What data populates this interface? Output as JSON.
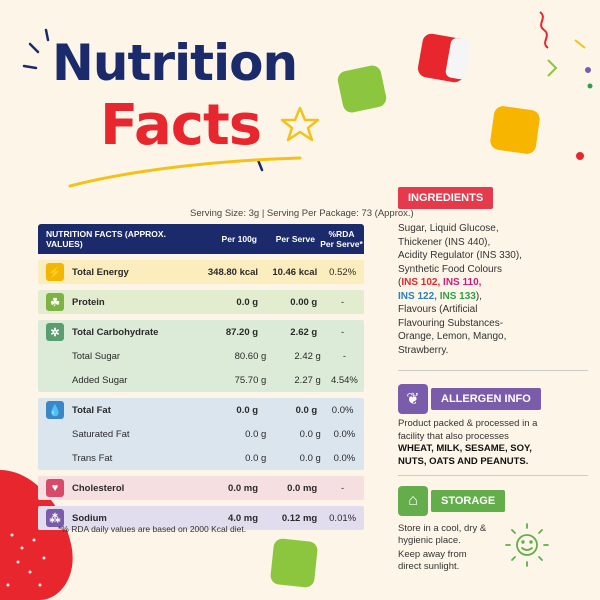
{
  "title": {
    "line1": "Nutrition",
    "line2": "Facts"
  },
  "serving": "Serving Size: 3g | Serving Per Package: 73 (Approx.)",
  "table": {
    "headers": {
      "col1": "NUTRITION FACTS (APPROX. VALUES)",
      "col2": "Per 100g",
      "col3": "Per Serve",
      "col4a": "%RDA",
      "col4b": "Per Serve*"
    },
    "energy": {
      "label": "Total Energy",
      "per100": "348.80 kcal",
      "serve": "10.46 kcal",
      "rda": "0.52%"
    },
    "protein": {
      "label": "Protein",
      "per100": "0.0 g",
      "serve": "0.00 g",
      "rda": "-"
    },
    "carb": {
      "label": "Total Carbohydrate",
      "per100": "87.20 g",
      "serve": "2.62 g",
      "rda": "-"
    },
    "sugar": {
      "label": "Total Sugar",
      "per100": "80.60 g",
      "serve": "2.42 g",
      "rda": "-"
    },
    "added_sugar": {
      "label": "Added Sugar",
      "per100": "75.70 g",
      "serve": "2.27 g",
      "rda": "4.54%"
    },
    "fat": {
      "label": "Total Fat",
      "per100": "0.0 g",
      "serve": "0.0 g",
      "rda": "0.0%"
    },
    "sat_fat": {
      "label": "Saturated Fat",
      "per100": "0.0 g",
      "serve": "0.0 g",
      "rda": "0.0%"
    },
    "trans_fat": {
      "label": "Trans Fat",
      "per100": "0.0 g",
      "serve": "0.0 g",
      "rda": "0.0%"
    },
    "cholesterol": {
      "label": "Cholesterol",
      "per100": "0.0 mg",
      "serve": "0.0 mg",
      "rda": "-"
    },
    "sodium": {
      "label": "Sodium",
      "per100": "4.0 mg",
      "serve": "0.12 mg",
      "rda": "0.01%"
    }
  },
  "footnote": "*% RDA daily values are based on 2000 Kcal diet.",
  "ingredients": {
    "label": "INGREDIENTS",
    "line1": "Sugar, Liquid Glucose,",
    "line2": "Thickener (INS 440),",
    "line3": "Acidity Regulator (INS 330),",
    "line4": "Synthetic Food Colours",
    "open1": "(",
    "ins102": "INS 102,",
    "ins110": "INS 110,",
    "ins122": "INS 122,",
    "ins133": "INS 133",
    "close1": "),",
    "line6": "Flavours (Artificial",
    "line7": "Flavouring Substances-",
    "line8": "Orange, Lemon, Mango,",
    "line9": "Strawberry."
  },
  "allergen": {
    "label": "ALLERGEN INFO",
    "line1": "Product packed & processed in a",
    "line2": "facility that also processes",
    "bold1": "WHEAT, MILK, SESAME, SOY,",
    "bold2": "NUTS, OATS AND PEANUTS."
  },
  "storage": {
    "label": "STORAGE",
    "line1": "Store in a cool, dry &",
    "line2": "hygienic place.",
    "line3": "Keep away from",
    "line4": "direct sunlight."
  },
  "colors": {
    "navy": "#1b2a6b",
    "red": "#e8262e",
    "ingredients": "#e43a4b",
    "allergen": "#7a5cab",
    "storage": "#63ad4b",
    "ins_red": "#e8262e",
    "ins_blue": "#2a7fc1",
    "ins_green": "#2fa04a"
  },
  "icons": [
    "lightning-icon",
    "protein-icon",
    "grain-icon",
    "drop-icon",
    "heart-icon",
    "salt-icon",
    "wheat-icon",
    "house-icon",
    "sun-smile-icon",
    "star-icon"
  ]
}
